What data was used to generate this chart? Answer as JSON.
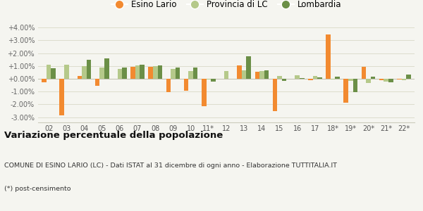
{
  "years": [
    "02",
    "03",
    "04",
    "05",
    "06",
    "07",
    "08",
    "09",
    "10",
    "11*",
    "12",
    "13",
    "14",
    "15",
    "16",
    "17",
    "18*",
    "19*",
    "20*",
    "21*",
    "22*"
  ],
  "esino": [
    -0.3,
    -2.85,
    0.22,
    -0.55,
    0.0,
    0.95,
    0.92,
    -1.05,
    -0.93,
    -2.15,
    0.0,
    1.02,
    0.55,
    -2.5,
    0.0,
    -0.1,
    3.48,
    -1.85,
    0.92,
    -0.1,
    -0.08
  ],
  "provincia": [
    1.1,
    1.1,
    1.0,
    0.88,
    0.75,
    1.02,
    1.0,
    0.75,
    0.62,
    -0.05,
    0.6,
    0.68,
    0.58,
    0.2,
    0.27,
    0.2,
    -0.05,
    -0.15,
    -0.35,
    -0.2,
    -0.12
  ],
  "lombardia": [
    0.82,
    0.0,
    1.5,
    1.6,
    0.88,
    1.1,
    1.02,
    0.88,
    0.88,
    -0.2,
    0.0,
    1.78,
    0.65,
    -0.15,
    0.05,
    0.12,
    0.15,
    -1.05,
    0.15,
    -0.3,
    0.35
  ],
  "esino_color": "#f28a30",
  "provincia_color": "#b5c98a",
  "lombardia_color": "#6b8f47",
  "bg_color": "#f5f5f0",
  "grid_color": "#ddddcc",
  "title": "Variazione percentuale della popolazione",
  "subtitle1": "COMUNE DI ESINO LARIO (LC) - Dati ISTAT al 31 dicembre di ogni anno - Elaborazione TUTTITALIA.IT",
  "subtitle2": "(*) post-censimento",
  "ylim": [
    -3.4,
    4.5
  ],
  "yticks": [
    -3.0,
    -2.0,
    -1.0,
    0.0,
    1.0,
    2.0,
    3.0,
    4.0
  ]
}
